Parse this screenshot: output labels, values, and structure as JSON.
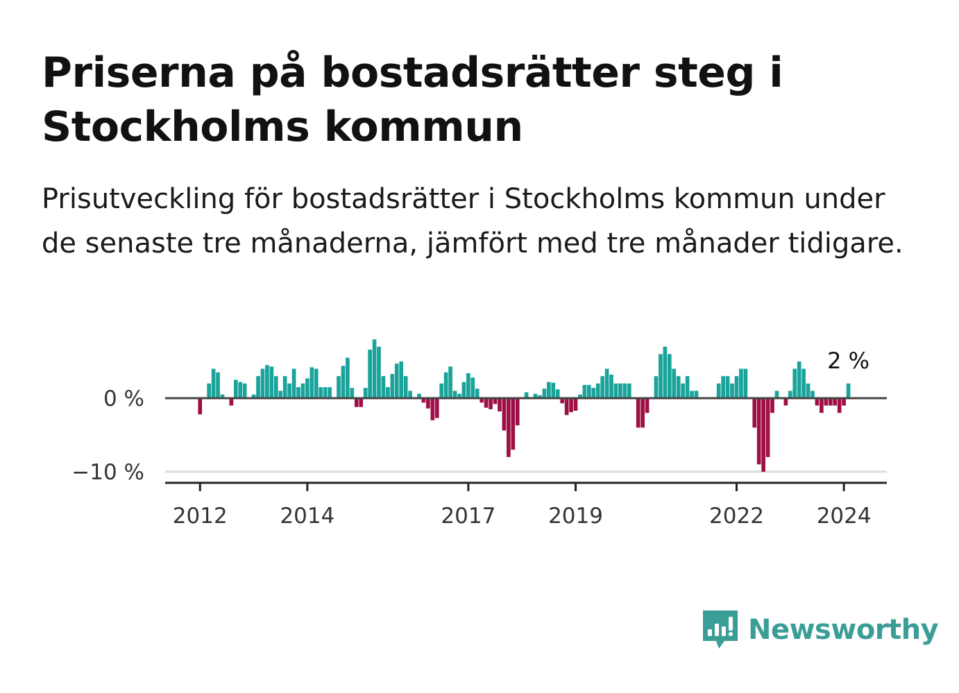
{
  "title": "Priserna på bostadsrätter steg i Stockholms kommun",
  "subtitle": "Prisutveckling för bostadsrätter i Stockholms kommun under de senaste tre månaderna, jämfört med tre månader tidigare.",
  "brand": {
    "name": "Newsworthy",
    "icon": "newsworthy-chart-icon",
    "color": "#3a9e96"
  },
  "colors": {
    "positive": "#1aa39a",
    "negative": "#9e1045",
    "zero_line": "#444444",
    "grid": "#dddddd"
  },
  "chart_data": {
    "type": "bar",
    "ylabel": "",
    "xlabel": "",
    "yticks": [
      {
        "value": 0,
        "label": "0 %"
      },
      {
        "value": -10,
        "label": "−10 %"
      }
    ],
    "xticks": [
      {
        "value": 2012.0,
        "label": "2012"
      },
      {
        "value": 2014.0,
        "label": "2014"
      },
      {
        "value": 2017.0,
        "label": "2017"
      },
      {
        "value": 2019.0,
        "label": "2019"
      },
      {
        "value": 2022.0,
        "label": "2022"
      },
      {
        "value": 2024.0,
        "label": "2024"
      }
    ],
    "ylim": [
      -11.5,
      8
    ],
    "xlim": [
      2011.35,
      2024.8
    ],
    "x_start": 2012.0,
    "x_step": 0.08333,
    "values": [
      -2.2,
      0,
      2,
      4,
      3.5,
      0.5,
      0,
      -1,
      2.5,
      2.2,
      2,
      0,
      0.5,
      3,
      4,
      4.5,
      4.3,
      3,
      1,
      3,
      2,
      4,
      1.5,
      2,
      2.7,
      4.2,
      4,
      1.5,
      1.5,
      1.5,
      0,
      3,
      4.4,
      5.5,
      1.4,
      -1.2,
      -1.2,
      1.4,
      6.6,
      8,
      7,
      3,
      1.5,
      3.3,
      4.7,
      5,
      3,
      1,
      0,
      0.6,
      -0.6,
      -1.4,
      -3,
      -2.7,
      2,
      3.5,
      4.3,
      1,
      0.6,
      2.2,
      3.4,
      2.8,
      1.3,
      -0.6,
      -1.3,
      -1.5,
      -0.8,
      -1.8,
      -4.4,
      -8,
      -7,
      -3.7,
      0,
      0.8,
      0,
      0.6,
      0.4,
      1.3,
      2.2,
      2.1,
      1.2,
      -0.7,
      -2.3,
      -1.9,
      -1.7,
      0.5,
      1.8,
      1.8,
      1.4,
      2,
      3,
      4,
      3.2,
      2,
      2,
      2,
      2,
      0,
      -4,
      -4,
      -2,
      0,
      3,
      6,
      7,
      6,
      4,
      3,
      2,
      3,
      1,
      1,
      0,
      0,
      0,
      0,
      2,
      3,
      3,
      2,
      3,
      4,
      4,
      0,
      -4,
      -9,
      -10,
      -8,
      -2,
      1,
      0,
      -1,
      1,
      4,
      5,
      4,
      2,
      1,
      -1,
      -2,
      -1,
      -1,
      -1,
      -2,
      -1,
      2
    ],
    "last_value_label": "2 %"
  }
}
